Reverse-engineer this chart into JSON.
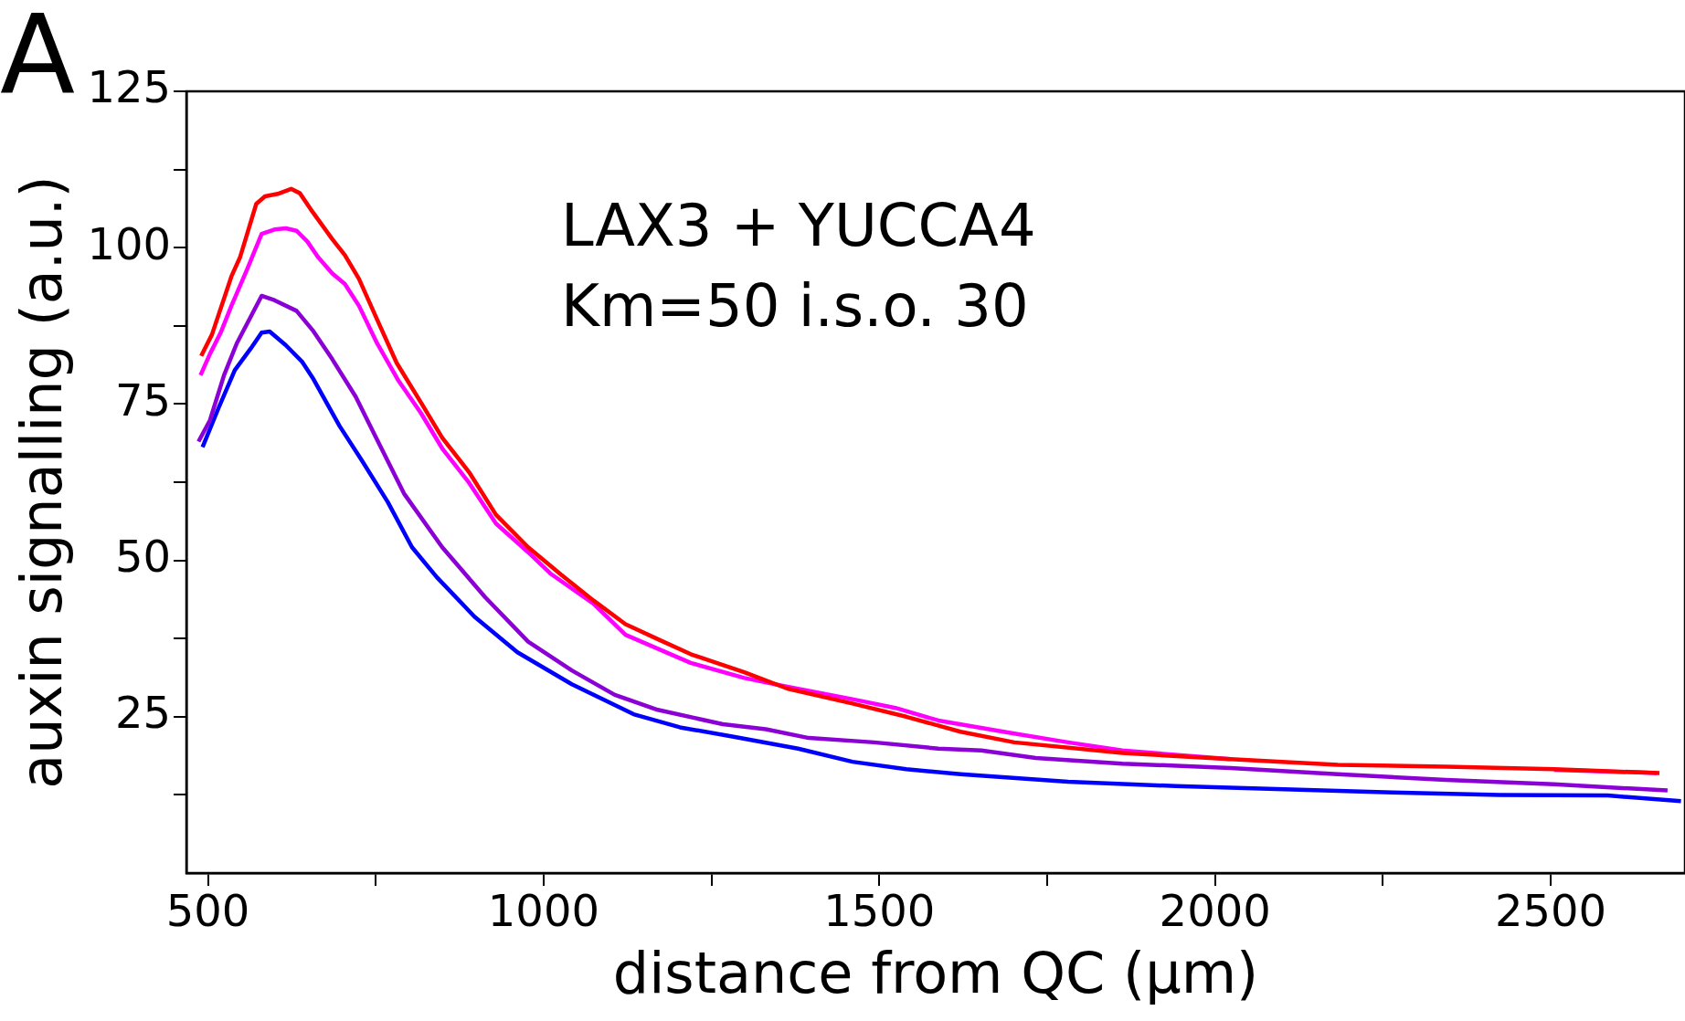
{
  "chart_data": {
    "type": "line",
    "xlabel": "distance from QC (µm)",
    "ylabel": "auxin signalling (a.u.)",
    "annotations": [
      "A",
      "LAX3 + YUCCA4",
      "Km=50 i.s.o. 30"
    ],
    "xlim": [
      468,
      2700
    ],
    "xticks": [
      500,
      {
        "value": 750,
        "label": null
      },
      1000,
      {
        "value": 1250,
        "label": null
      },
      1500,
      {
        "value": 1750,
        "label": null
      },
      2000,
      {
        "value": 2250,
        "label": null
      },
      2500
    ],
    "ylim": [
      0,
      125
    ],
    "yticks": [
      {
        "value": 12.5,
        "label": null
      },
      25,
      {
        "value": 37.5,
        "label": null
      },
      50,
      {
        "value": 62.5,
        "label": null
      },
      75,
      {
        "value": 87.5,
        "label": null
      },
      100,
      {
        "value": 112.5,
        "label": null
      },
      125
    ],
    "grid": false,
    "legend": false,
    "marker": "none",
    "line_style": "solid",
    "series": [
      {
        "color": "#ff0000",
        "x": [
          490,
          506,
          535,
          548,
          572,
          585,
          604,
          624,
          637,
          656,
          685,
          704,
          725,
          752,
          781,
          817,
          849,
          889,
          929,
          977,
          1026,
          1074,
          1122,
          1170,
          1219,
          1299,
          1363,
          1460,
          1540,
          1621,
          1701,
          1862,
          2023,
          2183,
          2344,
          2505,
          2662
        ],
        "values": [
          82.7,
          86.1,
          95.4,
          98.5,
          107,
          108.2,
          108.6,
          109.4,
          108.7,
          105.7,
          101.4,
          98.8,
          95,
          88.5,
          81.6,
          75.3,
          69.6,
          64.1,
          57.3,
          52.1,
          47.7,
          43.6,
          39.8,
          37.4,
          35,
          32.1,
          29.5,
          27.1,
          25,
          22.6,
          20.9,
          19.2,
          18.2,
          17.3,
          17,
          16.6,
          16
        ]
      },
      {
        "color": "#ff00ff",
        "x": [
          489,
          503,
          519,
          535,
          559,
          580,
          599,
          616,
          632,
          648,
          664,
          685,
          704,
          725,
          752,
          784,
          817,
          849,
          889,
          929,
          977,
          1010,
          1074,
          1122,
          1219,
          1299,
          1363,
          1460,
          1524,
          1588,
          1701,
          1781,
          1862,
          2023,
          2264,
          2505,
          2658
        ],
        "values": [
          79.6,
          83,
          86.4,
          90.7,
          96.7,
          102.2,
          102.9,
          103.1,
          102.7,
          101,
          98.5,
          95.9,
          94.2,
          90.7,
          84.7,
          78.7,
          73.6,
          67.9,
          62.4,
          55.9,
          51.3,
          47.9,
          43.1,
          38.1,
          33.6,
          31.2,
          29.8,
          27.8,
          26.4,
          24.4,
          22.3,
          20.9,
          19.6,
          18.2,
          null,
          16.5,
          16
        ]
      },
      {
        "color": "#8b00d4",
        "x": [
          486,
          503,
          524,
          543,
          564,
          580,
          599,
          632,
          656,
          685,
          720,
          752,
          792,
          849,
          913,
          977,
          1042,
          1106,
          1170,
          1267,
          1331,
          1395,
          1492,
          1588,
          1652,
          1733,
          1862,
          2023,
          2183,
          2344,
          2505,
          2674
        ],
        "values": [
          69,
          72.4,
          79.6,
          84.7,
          89,
          92.3,
          91.6,
          89.9,
          86.8,
          82.2,
          76.2,
          69.3,
          60.7,
          52.1,
          44.1,
          37,
          32.4,
          28.5,
          26.1,
          23.8,
          23,
          21.6,
          20.9,
          19.9,
          19.6,
          18.4,
          17.5,
          16.8,
          15.8,
          14.9,
          14.2,
          13.2
        ]
      },
      {
        "color": "#0000ff",
        "x": [
          492,
          516,
          540,
          564,
          580,
          592,
          616,
          640,
          656,
          696,
          728,
          768,
          804,
          841,
          897,
          961,
          1042,
          1134,
          1203,
          1283,
          1379,
          1460,
          1540,
          1621,
          1781,
          1942,
          2103,
          2264,
          2424,
          2585,
          2694
        ],
        "values": [
          68.1,
          74.4,
          80.4,
          83.9,
          86.4,
          86.6,
          84.4,
          81.8,
          79.2,
          71.5,
          66.2,
          59.3,
          52.1,
          47.3,
          41,
          35.3,
          30.2,
          25.4,
          23.3,
          21.8,
          19.9,
          17.8,
          16.6,
          15.8,
          14.6,
          13.9,
          13.4,
          12.9,
          12.5,
          12.4,
          11.5
        ]
      }
    ]
  }
}
